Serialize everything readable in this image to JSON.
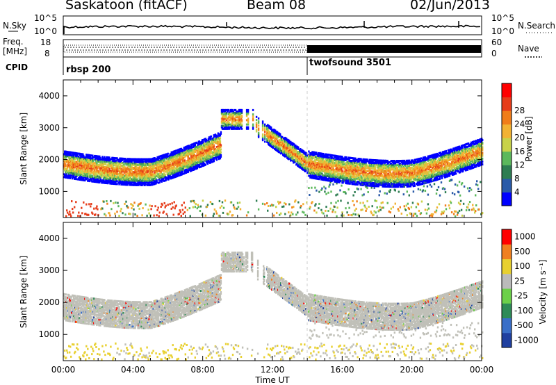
{
  "header": {
    "station": "Saskatoon (fitACF)",
    "beam": "Beam 08",
    "date": "02/Jun/2013"
  },
  "top_panels": {
    "nsky_label": "N.Sky",
    "nsky_ticks": [
      "10^5",
      "10^0"
    ],
    "nsearch_label": "N.Search",
    "nsearch_ticks": [
      "10^5",
      "10^0"
    ],
    "freq_label_1": "Freq.",
    "freq_label_2": "[MHz]",
    "freq_ticks": [
      "18",
      "8"
    ],
    "nave_label": "Nave",
    "nave_ticks": [
      "60",
      "0"
    ],
    "cpid_label": "CPID",
    "cpid_segments": [
      {
        "name": "rbsp 200",
        "start_hour": 0
      },
      {
        "name": "twofsound 3501",
        "start_hour": 14
      }
    ]
  },
  "chart_data": [
    {
      "type": "heatmap",
      "title": "",
      "ylabel": "Slant Range [km]",
      "xlabel": "",
      "xlim_hours": [
        0,
        24
      ],
      "ylim": [
        180,
        4500
      ],
      "yticks": [
        1000,
        2000,
        3000,
        4000
      ],
      "colorbar_label": "Power [dB]",
      "colorbar_ticks": [
        4,
        8,
        12,
        16,
        20,
        24,
        28
      ],
      "colormap": [
        "#0000ff",
        "#2a5aa8",
        "#2e7d52",
        "#5cb85c",
        "#c8d24a",
        "#f2b233",
        "#f07d1a",
        "#e63c1a",
        "#ff0000"
      ]
    },
    {
      "type": "heatmap",
      "title": "",
      "ylabel": "Slant Range [km]",
      "xlabel": "Time UT",
      "xlim_hours": [
        0,
        24
      ],
      "ylim": [
        180,
        4500
      ],
      "yticks": [
        1000,
        2000,
        3000,
        4000
      ],
      "xtick_labels": [
        "00:00",
        "04:00",
        "08:00",
        "12:00",
        "16:00",
        "20:00",
        "00:00"
      ],
      "colorbar_label": "Velocity [m s⁻¹]",
      "colorbar_ticks": [
        "1000",
        "500",
        "100",
        "25",
        "-25",
        "-100",
        "-500",
        "-1000"
      ],
      "colormap": [
        "#2040a0",
        "#3a6fc8",
        "#2e8b57",
        "#6cd04a",
        "#bbbbbb",
        "#e8d030",
        "#f08020",
        "#ff0000"
      ],
      "ground_scatter_color": "#c0c0b8"
    }
  ]
}
